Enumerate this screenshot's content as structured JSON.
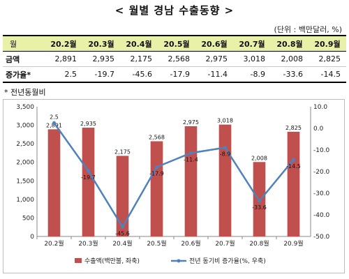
{
  "title": "< 월별 경남 수출동향 >",
  "unit": "(단위 : 백만달러, %)",
  "table": {
    "header_first": "월",
    "months": [
      "20.2월",
      "20.3월",
      "20.4월",
      "20.5월",
      "20.6월",
      "20.7월",
      "20.8월",
      "20.9월"
    ],
    "rows": [
      {
        "label": "금액",
        "values": [
          "2,891",
          "2,935",
          "2,175",
          "2,568",
          "2,975",
          "3,018",
          "2,008",
          "2,825"
        ]
      },
      {
        "label": "증가율*",
        "values": [
          "2.5",
          "-19.7",
          "-45.6",
          "-17.9",
          "-11.4",
          "-8.9",
          "-33.6",
          "-14.5"
        ]
      }
    ]
  },
  "note": "* 전년동월비",
  "chart_data": {
    "type": "bar",
    "categories": [
      "20.2월",
      "20.3월",
      "20.4월",
      "20.5월",
      "20.6월",
      "20.7월",
      "20.8월",
      "20.9월"
    ],
    "series": [
      {
        "name": "수출액(백만불, 좌축)",
        "type": "bar",
        "axis": "left",
        "values": [
          2891,
          2935,
          2175,
          2568,
          2975,
          3018,
          2008,
          2825
        ],
        "labels": [
          "2,891",
          "2,935",
          "2,175",
          "2,568",
          "2,975",
          "3,018",
          "2,008",
          "2,825"
        ],
        "color": "#c0504d"
      },
      {
        "name": "전년 동기비 증가율(%, 우축)",
        "type": "line",
        "axis": "right",
        "values": [
          2.5,
          -19.7,
          -45.6,
          -17.9,
          -11.4,
          -8.9,
          -33.6,
          -14.5
        ],
        "labels": [
          "2.5",
          "-19.7",
          "-45.6",
          "-17.9",
          "-11.4",
          "-8.9",
          "-33.6",
          "-14.5"
        ],
        "color": "#4f81bd"
      }
    ],
    "left_axis": {
      "min": 0,
      "max": 3500,
      "step": 500,
      "tick_labels": [
        "0",
        "500",
        "1,000",
        "1,500",
        "2,000",
        "2,500",
        "3,000",
        "3,500"
      ]
    },
    "right_axis": {
      "min": -50,
      "max": 10,
      "step": 10,
      "tick_labels": [
        "-50.0",
        "-40.0",
        "-30.0",
        "-20.0",
        "-10.0",
        "0.0",
        "10.0"
      ]
    },
    "legend_position": "bottom",
    "grid": false
  }
}
